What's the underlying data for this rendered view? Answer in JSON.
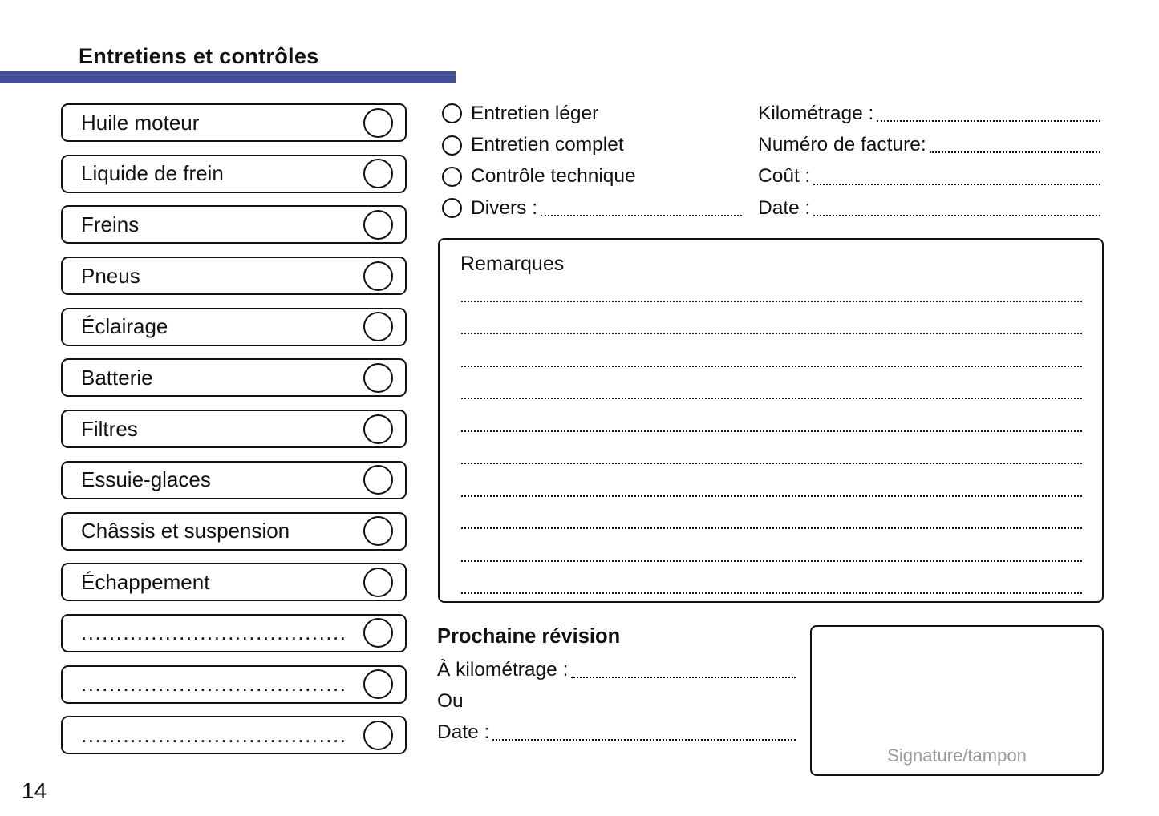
{
  "page": {
    "title": "Entretiens et contrôles",
    "number": "14"
  },
  "colors": {
    "accent": "#454D97",
    "ink": "#111111",
    "signature_gray": "#9A9A9A"
  },
  "checklist": {
    "items": [
      "Huile moteur",
      "Liquide de frein",
      "Freins",
      "Pneus",
      "Éclairage",
      "Batterie",
      "Filtres",
      "Essuie-glaces",
      "Châssis et suspension",
      "Échappement",
      "......................................",
      "......................................",
      "......................................"
    ]
  },
  "service_type": {
    "options": [
      "Entretien léger",
      "Entretien complet",
      "Contrôle technique",
      "Divers :"
    ]
  },
  "invoice_fields": {
    "labels": [
      "Kilométrage :",
      "Numéro de facture:",
      "Coût :",
      "Date :"
    ]
  },
  "remarks": {
    "title": "Remarques",
    "blank_line_count": 10
  },
  "next_service": {
    "title": "Prochaine révision",
    "km_label": "À kilométrage :",
    "or_label": "Ou",
    "date_label": "Date :"
  },
  "signature": {
    "label": "Signature/tampon"
  }
}
